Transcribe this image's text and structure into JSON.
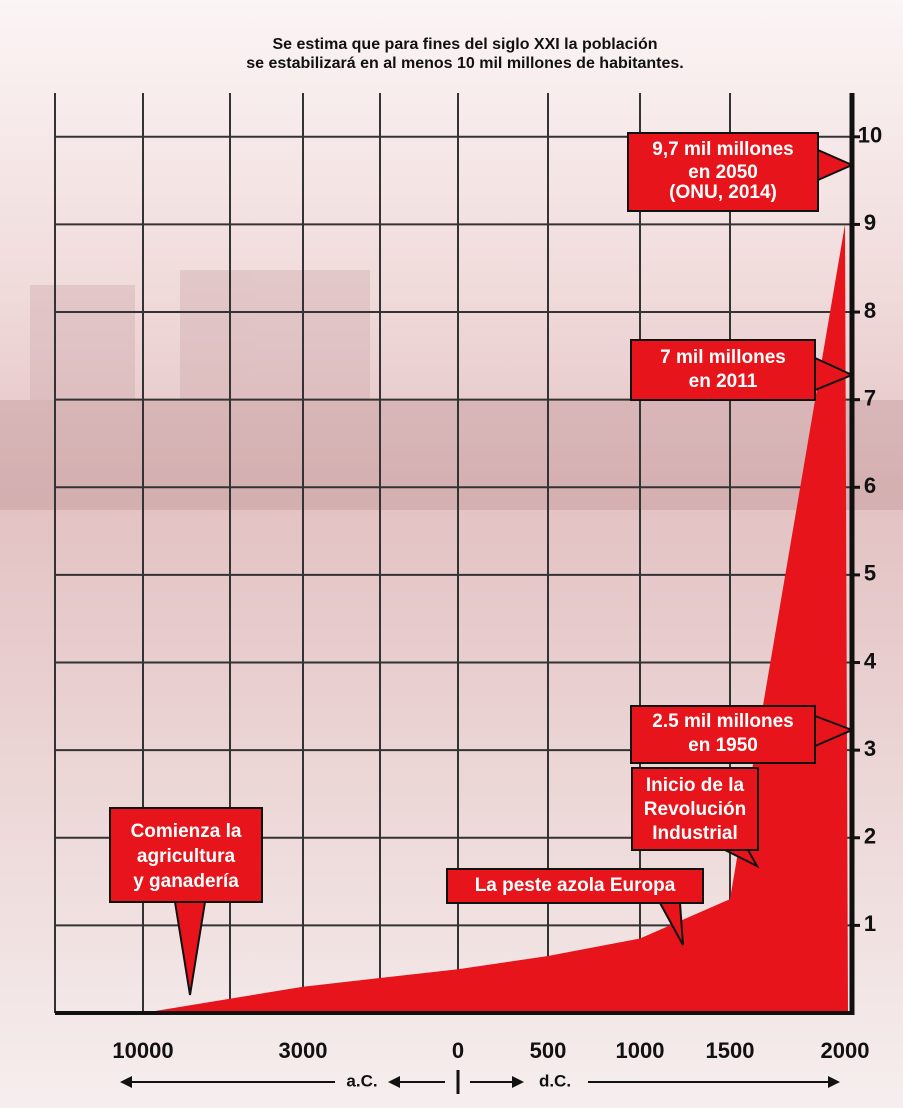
{
  "chart_data": {
    "type": "area",
    "title": [
      "Se estima que para fines del siglo XXI la población",
      "se estabilizará en al menos 10 mil millones de habitantes."
    ],
    "categories": [
      "10000",
      "3000",
      "0",
      "500",
      "1000",
      "1500",
      "2000"
    ],
    "values": [
      0,
      0.3,
      0.5,
      0.65,
      0.85,
      1.3,
      9
    ],
    "color": "#e8141b",
    "ylim": [
      0,
      10.5
    ],
    "yticks": [
      1,
      2,
      3,
      4,
      5,
      6,
      7,
      8,
      9,
      10
    ],
    "grid": true,
    "era_labels": [
      "a.C.",
      "d.C."
    ],
    "annotations": [
      [
        "9,7 mil millones",
        "en 2050",
        "(ONU, 2014)"
      ],
      [
        "7 mil millones",
        "en 2011"
      ],
      [
        "2.5 mil millones",
        "en 1950"
      ],
      [
        "Inicio de la",
        "Revolución",
        "Industrial"
      ],
      [
        "La peste azola Europa"
      ],
      [
        "Comienza la",
        "agricultura",
        "y ganadería"
      ]
    ]
  }
}
